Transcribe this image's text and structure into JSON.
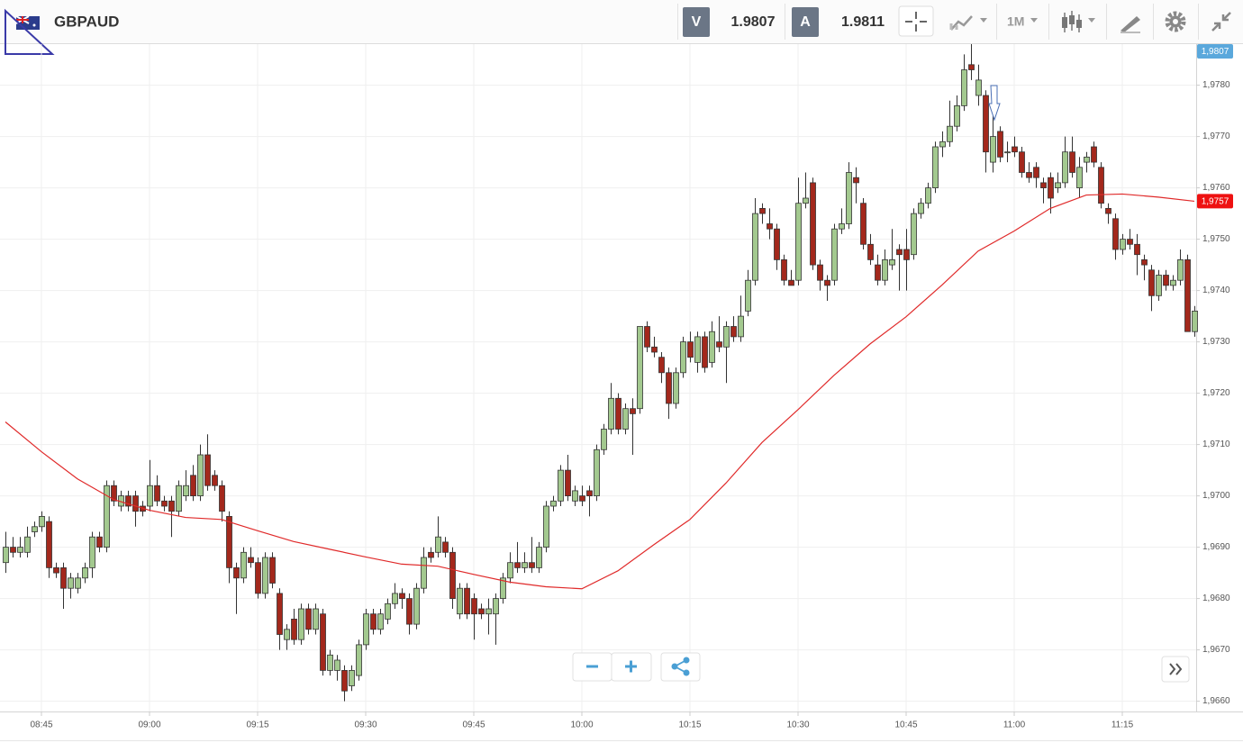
{
  "instrument": "GBPAUD",
  "bid": {
    "label": "V",
    "price": "1.9807"
  },
  "ask": {
    "label": "A",
    "price": "1.9811"
  },
  "timeframe": "1M",
  "chart_data": {
    "type": "candlestick",
    "x": [
      "08:40",
      "08:41",
      "08:42",
      "08:43",
      "08:44",
      "08:45",
      "08:46",
      "08:47",
      "08:48",
      "08:49",
      "08:50",
      "08:51",
      "08:52",
      "08:53",
      "08:54",
      "08:55",
      "08:56",
      "08:57",
      "08:58",
      "08:59",
      "09:00",
      "09:01",
      "09:02",
      "09:03",
      "09:04",
      "09:05",
      "09:06",
      "09:07",
      "09:08",
      "09:09",
      "09:10",
      "09:11",
      "09:12",
      "09:13",
      "09:14",
      "09:15",
      "09:16",
      "09:17",
      "09:18",
      "09:19",
      "09:20",
      "09:21",
      "09:22",
      "09:23",
      "09:24",
      "09:25",
      "09:26",
      "09:27",
      "09:28",
      "09:29",
      "09:30",
      "09:31",
      "09:32",
      "09:33",
      "09:34",
      "09:35",
      "09:36",
      "09:37",
      "09:38",
      "09:39",
      "09:40",
      "09:41",
      "09:42",
      "09:43",
      "09:44",
      "09:45",
      "09:46",
      "09:47",
      "09:48",
      "09:49",
      "09:50",
      "09:51",
      "09:52",
      "09:53",
      "09:54",
      "09:55",
      "09:56",
      "09:57",
      "09:58",
      "09:59",
      "10:00",
      "10:01",
      "10:02",
      "10:03",
      "10:04",
      "10:05",
      "10:06",
      "10:07",
      "10:08",
      "10:09",
      "10:10",
      "10:11",
      "10:12",
      "10:13",
      "10:14",
      "10:15",
      "10:16",
      "10:17",
      "10:18",
      "10:19",
      "10:20",
      "10:21",
      "10:22",
      "10:23",
      "10:24",
      "10:25",
      "10:26",
      "10:27",
      "10:28",
      "10:29",
      "10:30",
      "10:31",
      "10:32",
      "10:33",
      "10:34",
      "10:35",
      "10:36",
      "10:37",
      "10:38",
      "10:39",
      "10:40",
      "10:41",
      "10:42",
      "10:43",
      "10:44",
      "10:45",
      "10:46",
      "10:47",
      "10:48",
      "10:49",
      "10:50",
      "10:51",
      "10:52",
      "10:53",
      "10:54",
      "10:55",
      "10:56",
      "10:57",
      "10:58",
      "10:59",
      "11:00",
      "11:01",
      "11:02",
      "11:03",
      "11:04",
      "11:05",
      "11:06",
      "11:07",
      "11:08",
      "11:09",
      "11:10",
      "11:11",
      "11:12",
      "11:13",
      "11:14",
      "11:15",
      "11:16",
      "11:17",
      "11:18",
      "11:19",
      "11:20",
      "11:21",
      "11:22",
      "11:23",
      "11:24",
      "11:25"
    ],
    "open": [
      1.9687,
      1.969,
      1.9689,
      1.9689,
      1.9693,
      1.9694,
      1.9695,
      1.9686,
      1.9686,
      1.9682,
      1.9682,
      1.9684,
      1.9686,
      1.9692,
      1.969,
      1.9702,
      1.9698,
      1.97,
      1.97,
      1.9698,
      1.9698,
      1.9702,
      1.9699,
      1.9699,
      1.9697,
      1.97,
      1.9704,
      1.97,
      1.9708,
      1.9704,
      1.9702,
      1.9696,
      1.9686,
      1.9684,
      1.9688,
      1.9687,
      1.9681,
      1.9688,
      1.9681,
      1.9672,
      1.9676,
      1.9672,
      1.9678,
      1.9674,
      1.9677,
      1.9666,
      1.9666,
      1.9666,
      1.9663,
      1.9665,
      1.9671,
      1.9677,
      1.9674,
      1.9676,
      1.9679,
      1.9681,
      1.968,
      1.9675,
      1.9682,
      1.9689,
      1.9689,
      1.9691,
      1.9689,
      1.9677,
      1.9682,
      1.968,
      1.9678,
      1.9677,
      1.9677,
      1.968,
      1.9684,
      1.9687,
      1.9686,
      1.9687,
      1.9686,
      1.969,
      1.9698,
      1.9699,
      1.9705,
      1.9699,
      1.97,
      1.9701,
      1.97,
      1.9709,
      1.9713,
      1.9719,
      1.9713,
      1.9717,
      1.9717,
      1.9733,
      1.9729,
      1.9727,
      1.9724,
      1.9718,
      1.9724,
      1.973,
      1.9726,
      1.9731,
      1.9726,
      1.973,
      1.9729,
      1.9733,
      1.9731,
      1.9736,
      1.9742,
      1.9756,
      1.9753,
      1.9752,
      1.9746,
      1.9742,
      1.9742,
      1.9757,
      1.9761,
      1.9745,
      1.9742,
      1.9742,
      1.9752,
      1.9753,
      1.9762,
      1.9757,
      1.9749,
      1.9745,
      1.9742,
      1.9745,
      1.9748,
      1.9748,
      1.9747,
      1.9755,
      1.9757,
      1.976,
      1.9768,
      1.9769,
      1.9772,
      1.9776,
      1.9784,
      1.9778,
      1.9778,
      1.9765,
      1.9771,
      1.9767,
      1.9768,
      1.9767,
      1.9763,
      1.9764,
      1.9761,
      1.9762,
      1.976,
      1.9761,
      1.9767,
      1.976,
      1.9765,
      1.9768,
      1.9764,
      1.9756,
      1.9754,
      1.9748,
      1.975,
      1.9749,
      1.9746,
      1.9744,
      1.9739,
      1.9743,
      1.9741,
      1.9742,
      1.9746,
      1.9732
    ],
    "high": [
      1.9693,
      1.9692,
      1.9692,
      1.9694,
      1.9695,
      1.9697,
      1.9696,
      1.9687,
      1.9687,
      1.9685,
      1.9685,
      1.9687,
      1.9693,
      1.9693,
      1.9703,
      1.9703,
      1.9701,
      1.9701,
      1.9701,
      1.9699,
      1.9707,
      1.9704,
      1.97,
      1.97,
      1.9703,
      1.9705,
      1.9706,
      1.971,
      1.9712,
      1.9705,
      1.9703,
      1.9697,
      1.9687,
      1.969,
      1.969,
      1.9688,
      1.9689,
      1.9689,
      1.9682,
      1.9675,
      1.9678,
      1.9679,
      1.9679,
      1.9679,
      1.9678,
      1.967,
      1.9669,
      1.9667,
      1.9667,
      1.9672,
      1.9678,
      1.9678,
      1.9678,
      1.968,
      1.9683,
      1.9682,
      1.9681,
      1.9683,
      1.969,
      1.969,
      1.9696,
      1.9692,
      1.969,
      1.9683,
      1.9683,
      1.9681,
      1.9679,
      1.968,
      1.9681,
      1.9685,
      1.9689,
      1.9691,
      1.9689,
      1.9692,
      1.9691,
      1.9699,
      1.97,
      1.9706,
      1.9708,
      1.9702,
      1.9702,
      1.9702,
      1.971,
      1.9714,
      1.9722,
      1.972,
      1.9718,
      1.9719,
      1.9733,
      1.9734,
      1.9731,
      1.9728,
      1.9725,
      1.9725,
      1.9731,
      1.9732,
      1.9732,
      1.9732,
      1.9734,
      1.9735,
      1.9734,
      1.9735,
      1.9739,
      1.9744,
      1.9758,
      1.9757,
      1.9756,
      1.9753,
      1.9747,
      1.9744,
      1.9762,
      1.9763,
      1.9762,
      1.9746,
      1.9743,
      1.9753,
      1.9756,
      1.9765,
      1.9764,
      1.9758,
      1.9751,
      1.9747,
      1.9748,
      1.9752,
      1.9749,
      1.9752,
      1.9756,
      1.9758,
      1.9761,
      1.9769,
      1.9771,
      1.9777,
      1.9778,
      1.9786,
      1.9788,
      1.9784,
      1.9779,
      1.9775,
      1.9772,
      1.9769,
      1.977,
      1.9768,
      1.9765,
      1.9765,
      1.9762,
      1.9763,
      1.9763,
      1.977,
      1.977,
      1.9766,
      1.9767,
      1.9769,
      1.9765,
      1.9757,
      1.9755,
      1.9751,
      1.9752,
      1.9751,
      1.9747,
      1.9745,
      1.9744,
      1.9744,
      1.9743,
      1.9748,
      1.9747,
      1.9737
    ],
    "low": [
      1.9685,
      1.9688,
      1.9688,
      1.9688,
      1.9692,
      1.9693,
      1.9684,
      1.9684,
      1.9678,
      1.968,
      1.9681,
      1.9683,
      1.9684,
      1.9689,
      1.9689,
      1.9698,
      1.9697,
      1.9697,
      1.9694,
      1.9696,
      1.9697,
      1.9698,
      1.9697,
      1.9692,
      1.9696,
      1.9699,
      1.9699,
      1.9699,
      1.9701,
      1.9701,
      1.9695,
      1.9683,
      1.9677,
      1.9683,
      1.9686,
      1.968,
      1.968,
      1.9682,
      1.967,
      1.967,
      1.9671,
      1.9671,
      1.9673,
      1.9673,
      1.9665,
      1.9665,
      1.9664,
      1.966,
      1.9662,
      1.9664,
      1.967,
      1.9673,
      1.9673,
      1.9675,
      1.9678,
      1.9678,
      1.9673,
      1.9674,
      1.9681,
      1.9687,
      1.9688,
      1.9688,
      1.9678,
      1.9676,
      1.9676,
      1.9672,
      1.9676,
      1.9673,
      1.9671,
      1.9679,
      1.9683,
      1.9685,
      1.9685,
      1.9685,
      1.9685,
      1.9689,
      1.9697,
      1.9698,
      1.9699,
      1.9698,
      1.9698,
      1.9696,
      1.9699,
      1.9708,
      1.9712,
      1.9712,
      1.9712,
      1.9708,
      1.9716,
      1.9728,
      1.9727,
      1.9722,
      1.9715,
      1.9717,
      1.9723,
      1.9726,
      1.9724,
      1.9724,
      1.9725,
      1.9728,
      1.9722,
      1.973,
      1.973,
      1.9735,
      1.9741,
      1.9753,
      1.975,
      1.9744,
      1.9741,
      1.9741,
      1.9741,
      1.9756,
      1.9744,
      1.974,
      1.9738,
      1.9741,
      1.9751,
      1.9752,
      1.9757,
      1.9748,
      1.9745,
      1.9741,
      1.9741,
      1.9744,
      1.974,
      1.974,
      1.9746,
      1.9754,
      1.9756,
      1.9759,
      1.9766,
      1.9768,
      1.9771,
      1.9775,
      1.9781,
      1.9776,
      1.9763,
      1.9763,
      1.9765,
      1.9765,
      1.9766,
      1.9762,
      1.9761,
      1.976,
      1.9757,
      1.9755,
      1.9759,
      1.976,
      1.9762,
      1.9758,
      1.9763,
      1.9764,
      1.9756,
      1.9753,
      1.9746,
      1.9747,
      1.9748,
      1.9743,
      1.9742,
      1.9736,
      1.9738,
      1.974,
      1.974,
      1.9741,
      1.9732,
      1.9731
    ],
    "close": [
      1.969,
      1.9689,
      1.969,
      1.9692,
      1.9694,
      1.9696,
      1.9686,
      1.9685,
      1.9682,
      1.9684,
      1.9684,
      1.9686,
      1.9692,
      1.969,
      1.9702,
      1.9699,
      1.97,
      1.9698,
      1.9697,
      1.9697,
      1.9702,
      1.9699,
      1.9698,
      1.9697,
      1.9702,
      1.9702,
      1.97,
      1.9708,
      1.9702,
      1.9702,
      1.9697,
      1.9686,
      1.9684,
      1.9689,
      1.9687,
      1.9681,
      1.9688,
      1.9683,
      1.9673,
      1.9674,
      1.9672,
      1.9678,
      1.9674,
      1.9678,
      1.9666,
      1.9669,
      1.9668,
      1.9662,
      1.9666,
      1.9671,
      1.9677,
      1.9674,
      1.9677,
      1.9679,
      1.9681,
      1.968,
      1.9675,
      1.9682,
      1.9688,
      1.9688,
      1.9692,
      1.9689,
      1.968,
      1.9682,
      1.9677,
      1.9677,
      1.9677,
      1.9678,
      1.968,
      1.9684,
      1.9687,
      1.9686,
      1.9687,
      1.9686,
      1.969,
      1.9698,
      1.9699,
      1.9705,
      1.97,
      1.9701,
      1.9699,
      1.97,
      1.9709,
      1.9713,
      1.9719,
      1.9713,
      1.9717,
      1.9716,
      1.9733,
      1.9729,
      1.9728,
      1.9724,
      1.9718,
      1.9724,
      1.973,
      1.9727,
      1.9731,
      1.9725,
      1.9732,
      1.9729,
      1.9733,
      1.9731,
      1.9735,
      1.9742,
      1.9755,
      1.9755,
      1.9752,
      1.9746,
      1.9742,
      1.9741,
      1.9757,
      1.9758,
      1.9745,
      1.9742,
      1.9741,
      1.9752,
      1.9753,
      1.9763,
      1.9761,
      1.9749,
      1.9746,
      1.9742,
      1.9746,
      1.9746,
      1.9747,
      1.9746,
      1.9755,
      1.9757,
      1.976,
      1.9768,
      1.9769,
      1.9772,
      1.9776,
      1.9783,
      1.9783,
      1.9781,
      1.9767,
      1.977,
      1.9766,
      1.9767,
      1.9767,
      1.9763,
      1.9762,
      1.9762,
      1.976,
      1.9758,
      1.9761,
      1.9767,
      1.9763,
      1.9764,
      1.9766,
      1.9765,
      1.9757,
      1.9755,
      1.9748,
      1.975,
      1.9749,
      1.9747,
      1.9745,
      1.9739,
      1.9743,
      1.9741,
      1.9742,
      1.9746,
      1.9732,
      1.9736
    ],
    "up_color": "#a3c98f",
    "down_color": "#a3281c",
    "moving_average": {
      "color": "#e02a2a",
      "x": [
        "08:40",
        "08:45",
        "08:50",
        "08:55",
        "09:00",
        "09:05",
        "09:10",
        "09:15",
        "09:20",
        "09:25",
        "09:30",
        "09:35",
        "09:40",
        "09:45",
        "09:50",
        "09:55",
        "10:00",
        "10:05",
        "10:10",
        "10:15",
        "10:20",
        "10:25",
        "10:30",
        "10:35",
        "10:40",
        "10:45",
        "10:50",
        "10:55",
        "11:00",
        "11:05",
        "11:10",
        "11:15",
        "11:20",
        "11:25"
      ],
      "values": [
        1.97144,
        1.97086,
        1.97033,
        1.96993,
        1.96972,
        1.96958,
        1.96954,
        1.96932,
        1.96911,
        1.96896,
        1.96881,
        1.96867,
        1.96863,
        1.96847,
        1.96832,
        1.96823,
        1.96819,
        1.96854,
        1.96905,
        1.96954,
        1.97025,
        1.97104,
        1.97168,
        1.97235,
        1.97296,
        1.97349,
        1.97411,
        1.97477,
        1.97516,
        1.9756,
        1.97586,
        1.97588,
        1.97582,
        1.97574
      ]
    },
    "ylim": [
      1.9658,
      1.9788
    ],
    "yticks": [
      {
        "value": 1.966,
        "label": "1,9660"
      },
      {
        "value": 1.967,
        "label": "1,9670"
      },
      {
        "value": 1.968,
        "label": "1,9680"
      },
      {
        "value": 1.969,
        "label": "1,9690"
      },
      {
        "value": 1.97,
        "label": "1,9700"
      },
      {
        "value": 1.971,
        "label": "1,9710"
      },
      {
        "value": 1.972,
        "label": "1,9720"
      },
      {
        "value": 1.973,
        "label": "1,9730"
      },
      {
        "value": 1.974,
        "label": "1,9740"
      },
      {
        "value": 1.975,
        "label": "1,9750"
      },
      {
        "value": 1.976,
        "label": "1,9760"
      },
      {
        "value": 1.977,
        "label": "1,9770"
      },
      {
        "value": 1.978,
        "label": "1,9780"
      }
    ],
    "xticks": [
      "08:45",
      "09:00",
      "09:15",
      "09:30",
      "09:45",
      "10:00",
      "10:15",
      "10:30",
      "10:45",
      "11:00",
      "11:15"
    ],
    "grid": true,
    "price_badges": [
      {
        "label": "1,9807",
        "color": "#5aa8dc"
      },
      {
        "label": "1,9757",
        "color": "#ee1111"
      }
    ]
  }
}
